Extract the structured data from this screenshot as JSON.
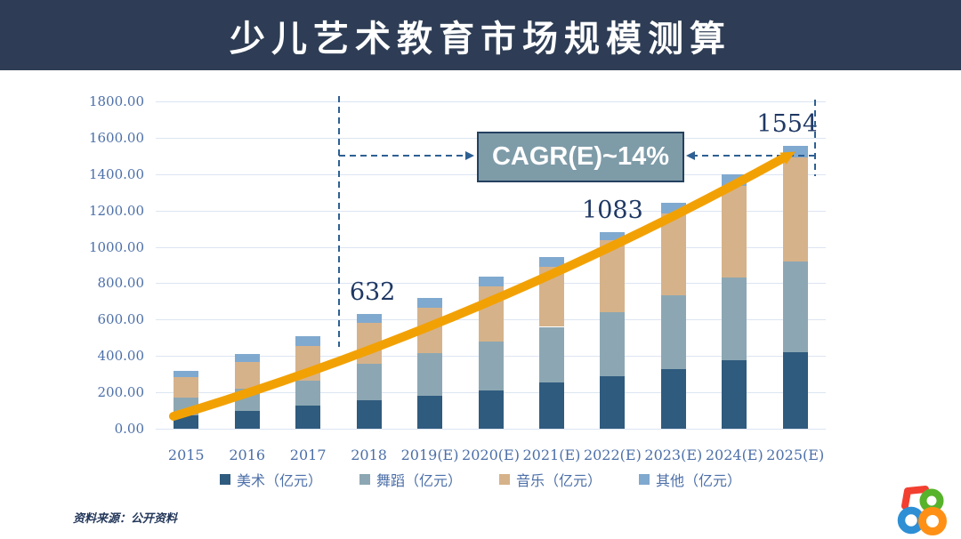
{
  "header": {
    "title": "少儿艺术教育市场规模测算"
  },
  "chart_data": {
    "type": "bar",
    "stacked": true,
    "title": "少儿艺术教育市场规模测算",
    "categories": [
      "2015",
      "2016",
      "2017",
      "2018",
      "2019(E)",
      "2020(E)",
      "2021(E)",
      "2022(E)",
      "2023(E)",
      "2024(E)",
      "2025(E)"
    ],
    "series": [
      {
        "name": "美术（亿元）",
        "color": "#2F5B7E",
        "values": [
          75,
          100,
          125,
          155,
          180,
          210,
          255,
          290,
          330,
          375,
          420
        ]
      },
      {
        "name": "舞蹈（亿元）",
        "color": "#8CA7B3",
        "values": [
          95,
          120,
          140,
          200,
          235,
          270,
          305,
          350,
          405,
          455,
          500
        ]
      },
      {
        "name": "音乐（亿元）",
        "color": "#D6B28A",
        "values": [
          115,
          145,
          190,
          228,
          250,
          305,
          330,
          395,
          450,
          505,
          570
        ]
      },
      {
        "name": "其他（亿元）",
        "color": "#80A9CF",
        "values": [
          35,
          45,
          55,
          49,
          55,
          50,
          55,
          48,
          55,
          65,
          64
        ]
      }
    ],
    "totals": [
      320,
      410,
      510,
      632,
      720,
      835,
      945,
      1083,
      1240,
      1400,
      1554
    ],
    "bar_total_labels": [
      {
        "category_index": 3,
        "text": "632"
      },
      {
        "category_index": 7,
        "text": "1083"
      },
      {
        "category_index": 10,
        "text": "1554"
      }
    ],
    "ylim": [
      0,
      1800
    ],
    "ytick_step": 200,
    "ytick_labels": [
      "1800.00",
      "1600.00",
      "1400.00",
      "1200.00",
      "1000.00",
      "800.00",
      "600.00",
      "400.00",
      "200.00",
      "0.00"
    ],
    "grid": true,
    "legend_position": "bottom",
    "annotation": {
      "label": "CAGR(E)~14%",
      "box_bg": "#7E9BA8",
      "box_border": "#24415F",
      "dash_color": "#2E6093"
    },
    "trend_line": {
      "style": "decorative-growth-arrow",
      "color": "#F2A104"
    }
  },
  "footer": {
    "source": "资料来源：公开资料"
  },
  "logo": {
    "name": "58",
    "red": "#F23F30",
    "blue": "#2E8FD5",
    "green": "#56B32B",
    "orange": "#FF9015"
  }
}
